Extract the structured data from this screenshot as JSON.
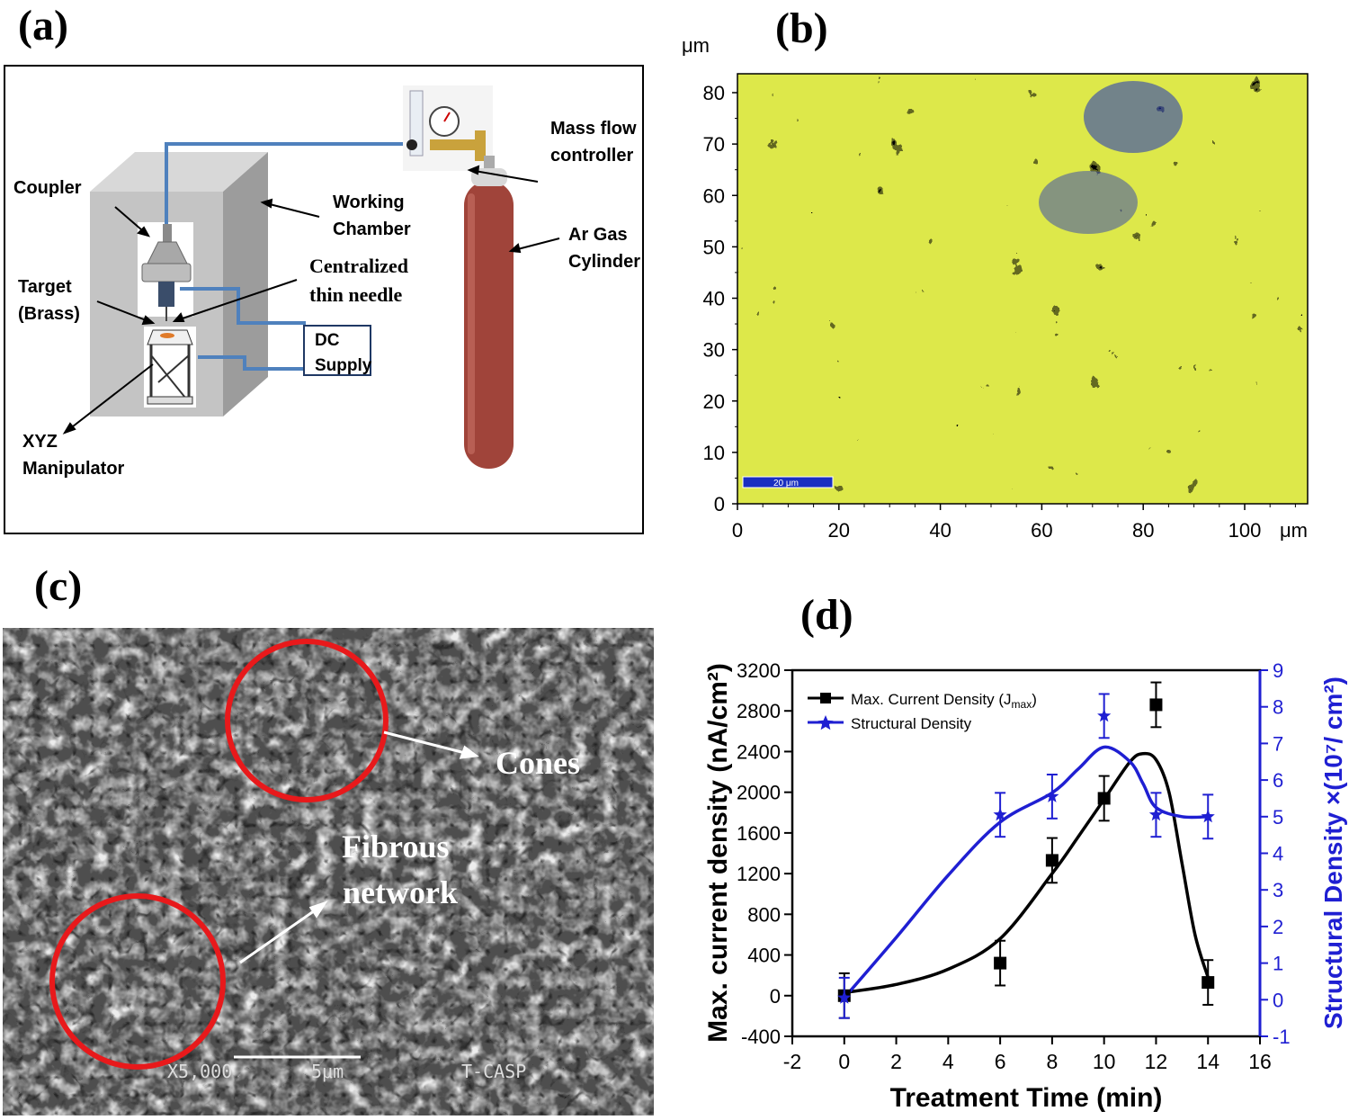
{
  "panels": {
    "a": {
      "letter": "(a)",
      "labels": {
        "coupler": "Coupler",
        "working_chamber_1": "Working",
        "working_chamber_2": "Chamber",
        "target_1": "Target",
        "target_2": "(Brass)",
        "needle_1": "Centralized",
        "needle_2": "thin needle",
        "dc_1": "DC",
        "dc_2": "Supply",
        "xyz_1": "XYZ",
        "xyz_2": "Manipulator",
        "mfc_1": "Mass flow",
        "mfc_2": "controller",
        "ar_1": "Ar Gas",
        "ar_2": "Cylinder"
      },
      "colors": {
        "pipe": "#4f81bd",
        "cylinder": "#a0443a",
        "chamber": "#c8c8c8"
      }
    },
    "b": {
      "letter": "(b)",
      "unit_top": "μm",
      "unit_right": "μm",
      "x_ticks": [
        "0",
        "20",
        "40",
        "60",
        "80",
        "100"
      ],
      "y_ticks": [
        "0",
        "10",
        "20",
        "30",
        "40",
        "50",
        "60",
        "70",
        "80"
      ],
      "scalebar": "20 μm",
      "colors": {
        "high": "#dde84a",
        "mid": "#33c0c8",
        "low": "#1a2fc0"
      }
    },
    "c": {
      "letter": "(c)",
      "label_cones": "Cones",
      "label_fibrous_1": "Fibrous",
      "label_fibrous_2": "network",
      "sem_mag": "X5,000",
      "sem_scale": "5μm",
      "sem_brand": "T-CASP"
    },
    "d": {
      "letter": "(d)"
    }
  },
  "chart_data": {
    "type": "line",
    "xlabel": "Treatment Time (min)",
    "ylabel_left": "Max. current density (nA/cm²)",
    "ylabel_right": "Structural Density ×(10⁷/ cm²)",
    "xlim": [
      -2,
      16
    ],
    "ylim_left": [
      -400,
      3200
    ],
    "ylim_right": [
      -1,
      9
    ],
    "x_ticks": [
      -2,
      0,
      2,
      4,
      6,
      8,
      10,
      12,
      14,
      16
    ],
    "y_ticks_left": [
      -400,
      0,
      400,
      800,
      1200,
      1600,
      2000,
      2400,
      2800,
      3200
    ],
    "y_ticks_right": [
      -1,
      0,
      1,
      2,
      3,
      4,
      5,
      6,
      7,
      8,
      9
    ],
    "legend_position": "top-left",
    "series": [
      {
        "name": "Max. Current Density (J",
        "name_sub": "max",
        "name_end": ")",
        "axis": "left",
        "color": "#000000",
        "marker": "square",
        "x": [
          0,
          6,
          8,
          10,
          12,
          14
        ],
        "y": [
          0,
          320,
          1330,
          1940,
          2860,
          130
        ],
        "err": [
          220,
          220,
          220,
          220,
          220,
          220
        ],
        "fit_x": [
          0,
          2,
          4,
          6,
          8,
          9,
          10,
          11,
          11.5,
          12,
          12.5,
          13,
          13.5,
          14
        ],
        "fit_y": [
          30,
          110,
          260,
          560,
          1200,
          1560,
          1930,
          2300,
          2380,
          2320,
          2000,
          1300,
          600,
          180
        ]
      },
      {
        "name": "Structural Density",
        "axis": "right",
        "color": "#1f1fd2",
        "marker": "star",
        "x": [
          0,
          6,
          8,
          10,
          12,
          14
        ],
        "y": [
          0.05,
          5.05,
          5.55,
          7.75,
          5.05,
          5.0
        ],
        "err": [
          0.55,
          0.6,
          0.6,
          0.6,
          0.6,
          0.6
        ],
        "fit_x": [
          0,
          2,
          4,
          6,
          8,
          9,
          10,
          11,
          11.5,
          12,
          13,
          14
        ],
        "fit_y": [
          0.05,
          1.7,
          3.4,
          4.85,
          5.65,
          6.3,
          6.9,
          6.5,
          5.9,
          5.25,
          5.0,
          5.0
        ]
      }
    ]
  }
}
